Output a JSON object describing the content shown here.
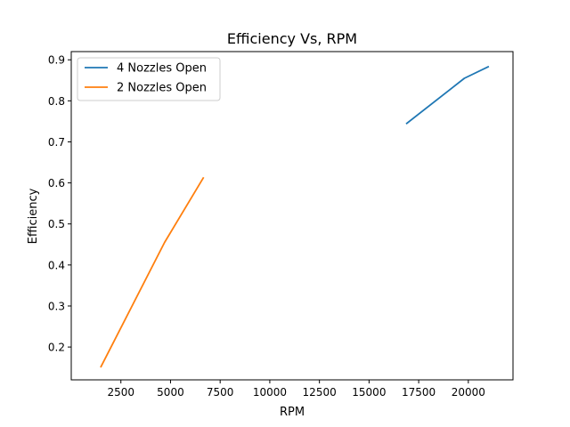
{
  "chart_data": {
    "type": "line",
    "title": "Efficiency Vs, RPM",
    "xlabel": "RPM",
    "ylabel": "Efficiency",
    "xlim": [
      0,
      22250
    ],
    "ylim": [
      0.12,
      0.92
    ],
    "xticks": [
      2500,
      5000,
      7500,
      10000,
      12500,
      15000,
      17500,
      20000
    ],
    "xtick_labels": [
      "2500",
      "5000",
      "7500",
      "10000",
      "12500",
      "15000",
      "17500",
      "20000"
    ],
    "yticks": [
      0.2,
      0.3,
      0.4,
      0.5,
      0.6,
      0.7,
      0.8,
      0.9
    ],
    "ytick_labels": [
      "0.2",
      "0.3",
      "0.4",
      "0.5",
      "0.6",
      "0.7",
      "0.8",
      "0.9"
    ],
    "grid": false,
    "legend": "top-left",
    "series": [
      {
        "name": "4 Nozzles Open",
        "color": "#1f77b4",
        "x": [
          16900,
          19800,
          21000
        ],
        "y": [
          0.745,
          0.855,
          0.883
        ]
      },
      {
        "name": "2 Nozzles Open",
        "color": "#ff7f0e",
        "x": [
          1500,
          4700,
          6650
        ],
        "y": [
          0.152,
          0.455,
          0.612
        ]
      }
    ]
  }
}
